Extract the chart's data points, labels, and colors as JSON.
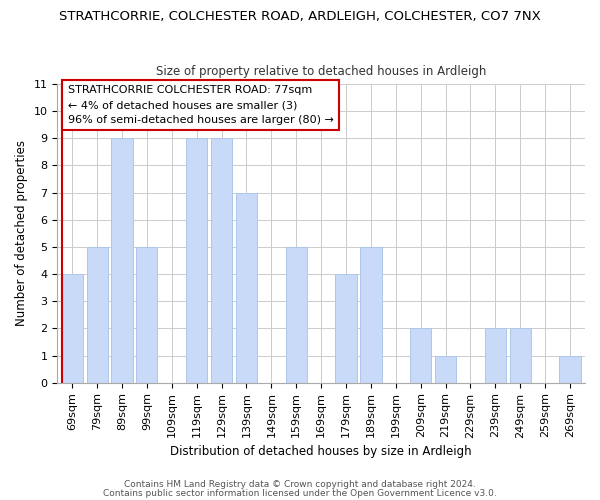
{
  "title": "STRATHCORRIE, COLCHESTER ROAD, ARDLEIGH, COLCHESTER, CO7 7NX",
  "subtitle": "Size of property relative to detached houses in Ardleigh",
  "xlabel": "Distribution of detached houses by size in Ardleigh",
  "ylabel": "Number of detached properties",
  "categories": [
    "69sqm",
    "79sqm",
    "89sqm",
    "99sqm",
    "109sqm",
    "119sqm",
    "129sqm",
    "139sqm",
    "149sqm",
    "159sqm",
    "169sqm",
    "179sqm",
    "189sqm",
    "199sqm",
    "209sqm",
    "219sqm",
    "229sqm",
    "239sqm",
    "249sqm",
    "259sqm",
    "269sqm"
  ],
  "values": [
    4,
    5,
    9,
    5,
    0,
    9,
    9,
    7,
    0,
    5,
    0,
    4,
    5,
    0,
    2,
    1,
    0,
    2,
    2,
    0,
    1
  ],
  "bar_color": "#c9daf8",
  "bar_edge_color": "#aec6e8",
  "highlight_edge_color": "#cc0000",
  "ylim": [
    0,
    11
  ],
  "yticks": [
    0,
    1,
    2,
    3,
    4,
    5,
    6,
    7,
    8,
    9,
    10,
    11
  ],
  "annotation_title": "STRATHCORRIE COLCHESTER ROAD: 77sqm",
  "annotation_line1": "← 4% of detached houses are smaller (3)",
  "annotation_line2": "96% of semi-detached houses are larger (80) →",
  "footer_line1": "Contains HM Land Registry data © Crown copyright and database right 2024.",
  "footer_line2": "Contains public sector information licensed under the Open Government Licence v3.0.",
  "background_color": "#ffffff",
  "grid_color": "#cccccc",
  "title_fontsize": 9.5,
  "subtitle_fontsize": 8.5,
  "axis_label_fontsize": 8.5,
  "tick_fontsize": 8,
  "annotation_fontsize": 8,
  "footer_fontsize": 6.5
}
